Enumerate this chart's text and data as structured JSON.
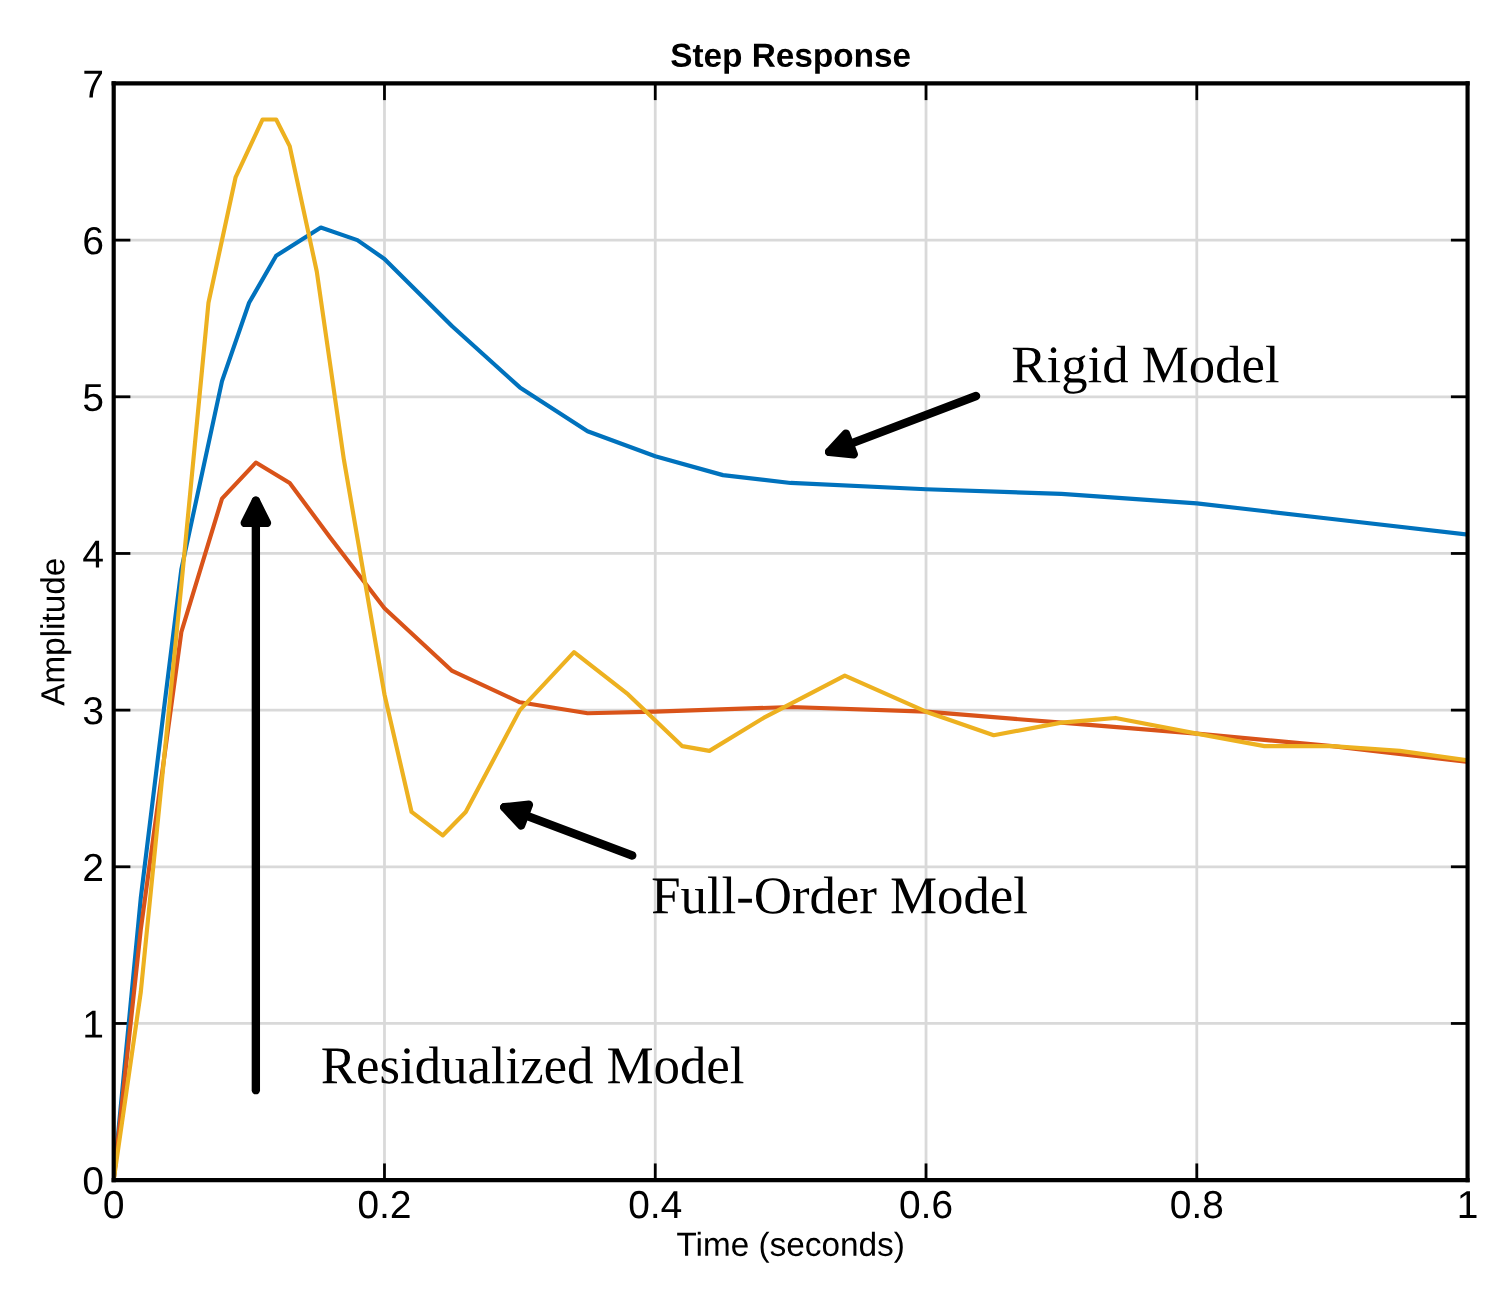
{
  "chart_data": {
    "type": "line",
    "title": "Step Response",
    "xlabel": "Time (seconds)",
    "ylabel": "Amplitude",
    "xlim": [
      0,
      1
    ],
    "ylim": [
      0,
      7
    ],
    "xticks": [
      0,
      0.2,
      0.4,
      0.6,
      0.8,
      1
    ],
    "yticks": [
      0,
      1,
      2,
      3,
      4,
      5,
      6,
      7
    ],
    "grid": true,
    "line_style": "solid",
    "series": [
      {
        "color": "#0072bd",
        "x": [
          0,
          0.02,
          0.038,
          0.05,
          0.08,
          0.1,
          0.12,
          0.153,
          0.18,
          0.2,
          0.25,
          0.3,
          0.35,
          0.4,
          0.45,
          0.5,
          0.6,
          0.7,
          0.8,
          0.9,
          1.0
        ],
        "values": [
          0,
          1.8,
          3.07,
          3.9,
          5.1,
          5.6,
          5.9,
          6.08,
          6.0,
          5.88,
          5.45,
          5.06,
          4.78,
          4.62,
          4.5,
          4.45,
          4.41,
          4.38,
          4.32,
          4.22,
          4.12
        ]
      },
      {
        "color": "#d95319",
        "x": [
          0,
          0.02,
          0.05,
          0.08,
          0.105,
          0.13,
          0.16,
          0.2,
          0.25,
          0.3,
          0.35,
          0.4,
          0.5,
          0.6,
          0.7,
          0.8,
          0.9,
          1.0
        ],
        "values": [
          0,
          1.6,
          3.5,
          4.35,
          4.58,
          4.45,
          4.1,
          3.65,
          3.25,
          3.05,
          2.98,
          2.99,
          3.02,
          2.99,
          2.92,
          2.85,
          2.77,
          2.67
        ]
      },
      {
        "color": "#edb120",
        "x": [
          0,
          0.02,
          0.05,
          0.07,
          0.09,
          0.11,
          0.12,
          0.13,
          0.15,
          0.17,
          0.2,
          0.22,
          0.243,
          0.26,
          0.3,
          0.34,
          0.38,
          0.42,
          0.44,
          0.48,
          0.54,
          0.6,
          0.65,
          0.7,
          0.74,
          0.8,
          0.85,
          0.9,
          0.95,
          1.0
        ],
        "values": [
          0,
          1.2,
          3.8,
          5.6,
          6.4,
          6.77,
          6.77,
          6.6,
          5.8,
          4.6,
          3.1,
          2.35,
          2.2,
          2.35,
          3.0,
          3.37,
          3.1,
          2.77,
          2.74,
          2.95,
          3.22,
          2.99,
          2.84,
          2.92,
          2.95,
          2.85,
          2.77,
          2.77,
          2.74,
          2.68
        ]
      }
    ],
    "annotations": [
      "Rigid Model",
      "Full-Order Model",
      "Residualized Model"
    ]
  }
}
